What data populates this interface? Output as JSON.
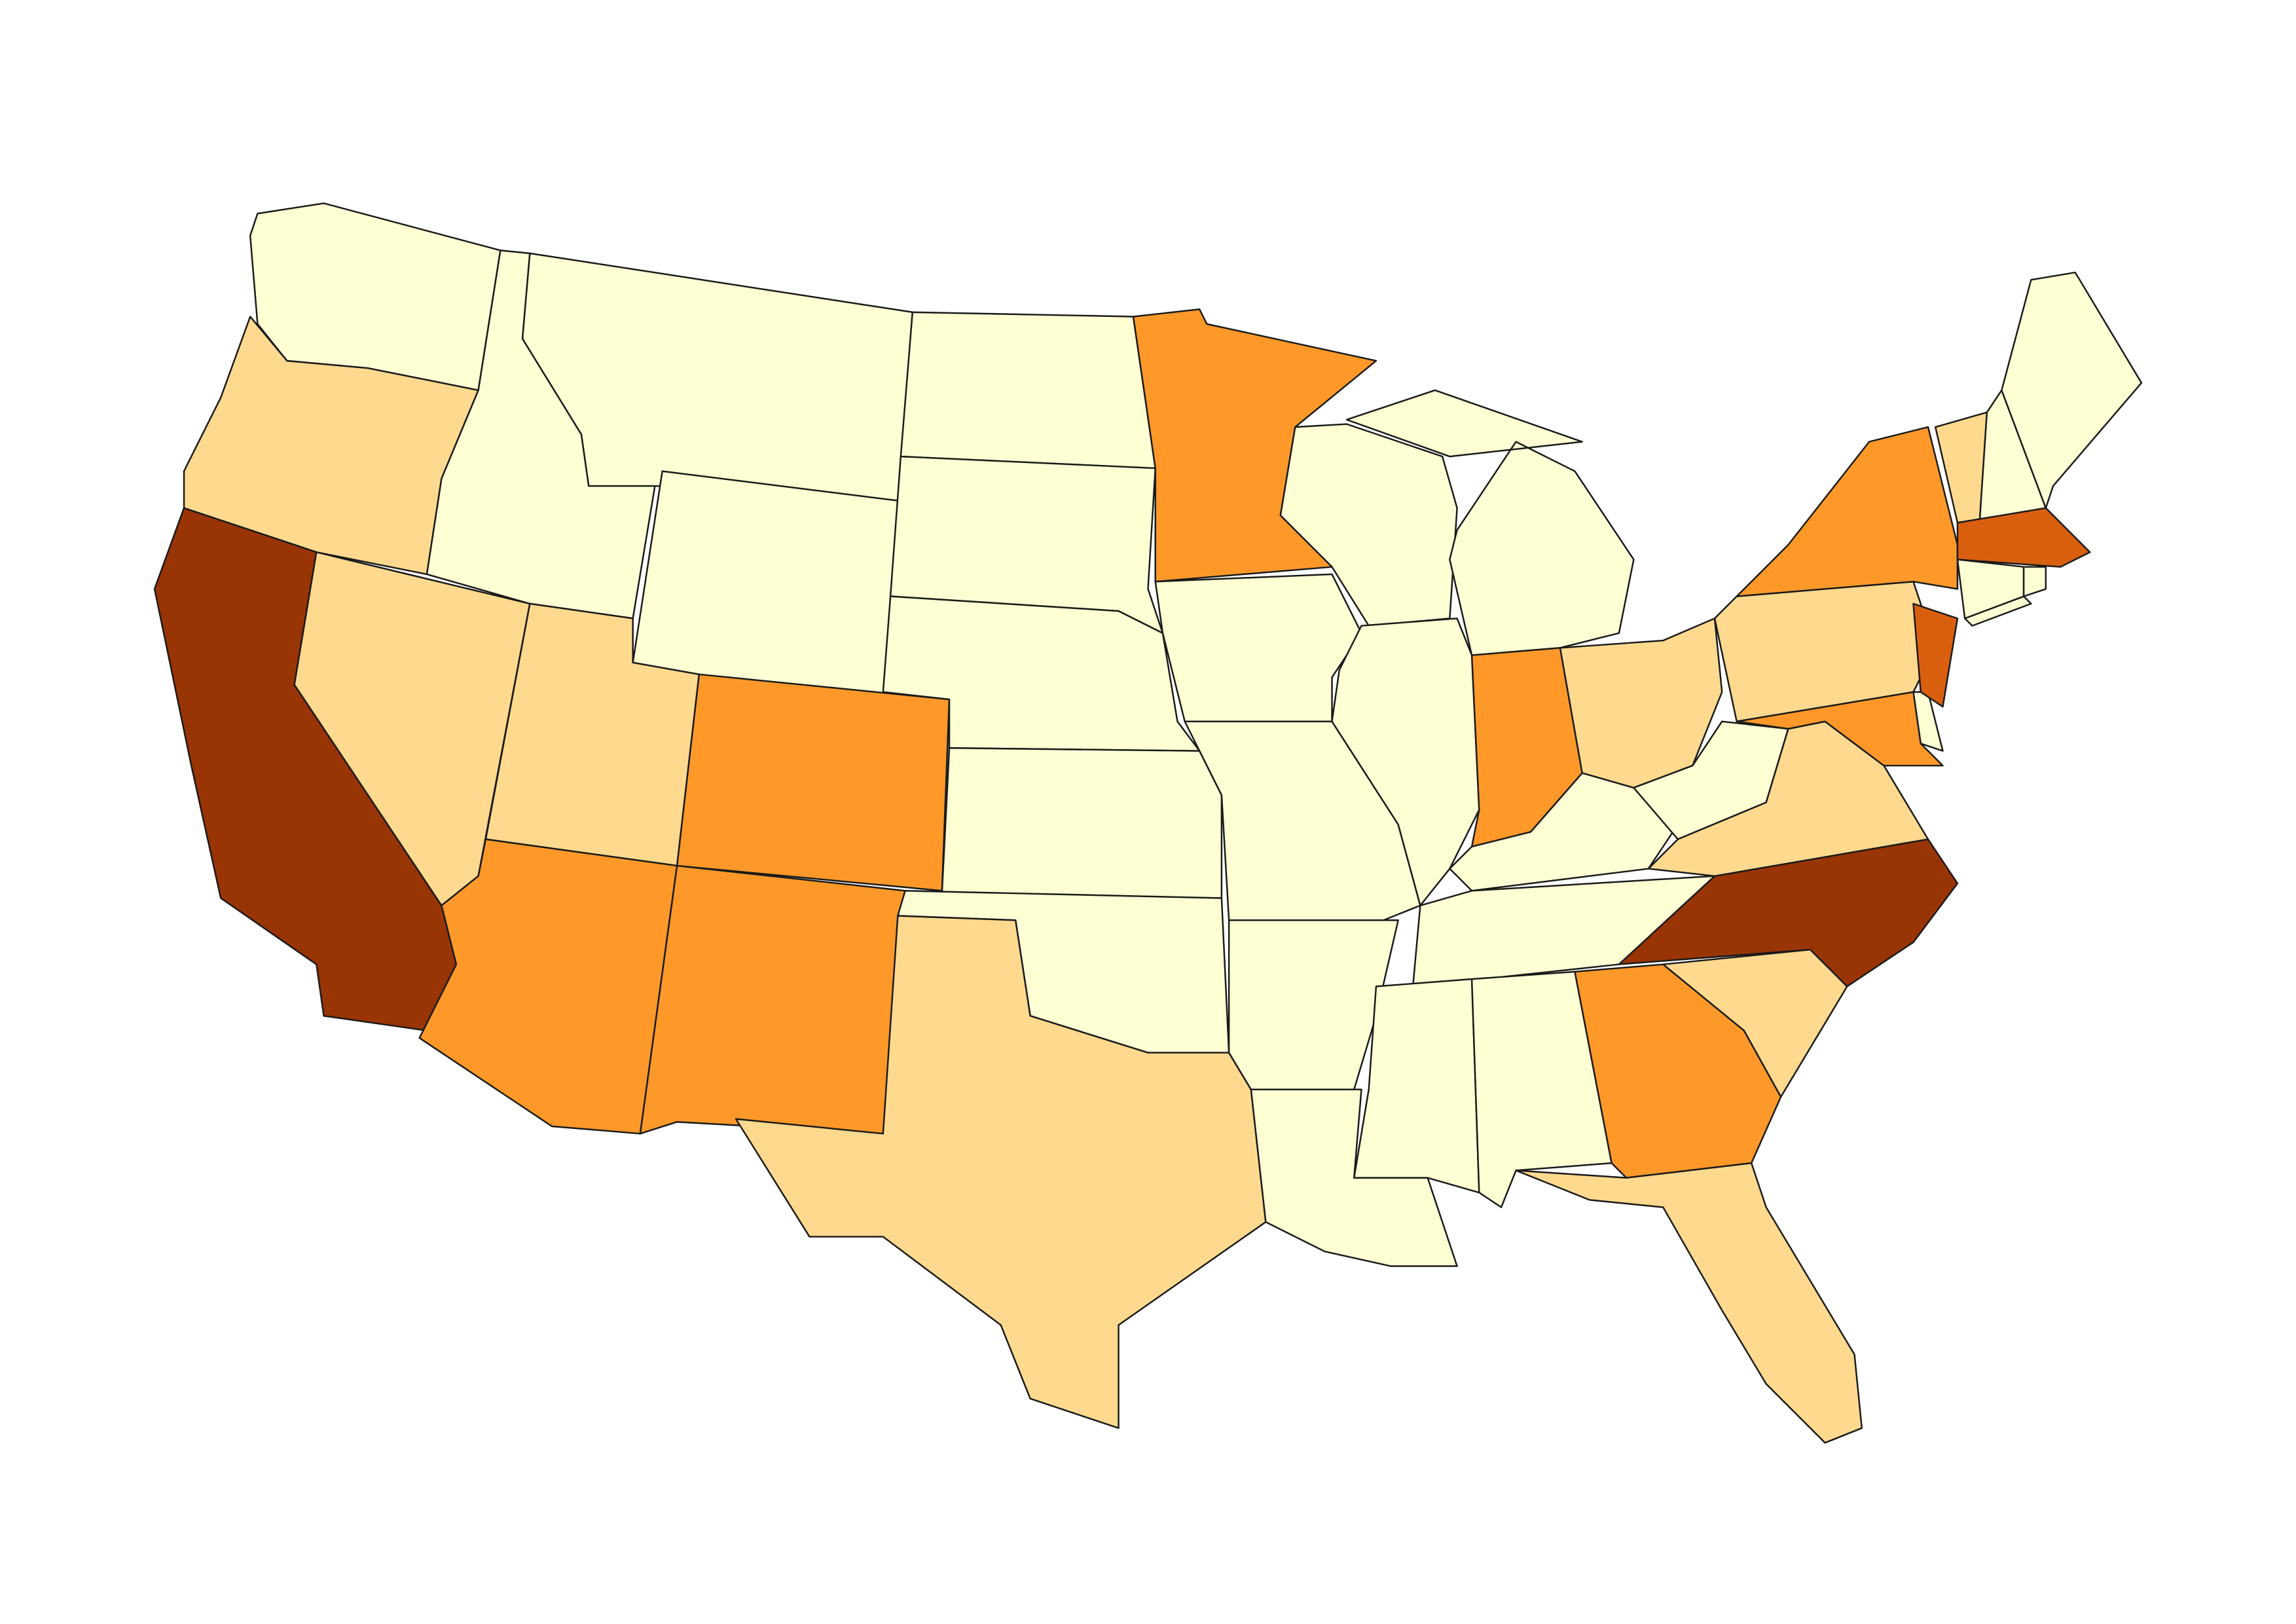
{
  "map": {
    "type": "choropleth",
    "regions": [
      {
        "color": "#ffffd4"
      },
      {
        "color": "#fed98e"
      },
      {
        "color": "#993404"
      },
      {
        "color": "#fed98e"
      },
      {
        "color": "#ffffd4"
      },
      {
        "color": "#ffffd4"
      },
      {
        "color": "#ffffd4"
      },
      {
        "color": "#fed98e"
      },
      {
        "color": "#fe9929"
      },
      {
        "color": "#fe9929"
      },
      {
        "color": "#fe9929"
      },
      {
        "color": "#ffffd4"
      },
      {
        "color": "#ffffd4"
      },
      {
        "color": "#ffffd4"
      },
      {
        "color": "#ffffd4"
      },
      {
        "color": "#ffffd4"
      },
      {
        "color": "#fed98e"
      },
      {
        "color": "#fe9929"
      },
      {
        "color": "#ffffd4"
      },
      {
        "color": "#ffffd4"
      },
      {
        "color": "#ffffd4"
      },
      {
        "color": "#ffffd4"
      },
      {
        "color": "#ffffd4"
      },
      {
        "color": "#ffffd4"
      },
      {
        "color": "#ffffd4"
      },
      {
        "color": "#ffffd4"
      },
      {
        "color": "#fe9929"
      },
      {
        "color": "#fed98e"
      },
      {
        "color": "#ffffd4"
      },
      {
        "color": "#ffffd4"
      },
      {
        "color": "#ffffd4"
      },
      {
        "color": "#ffffd4"
      },
      {
        "color": "#fe9929"
      },
      {
        "color": "#fed98e"
      },
      {
        "color": "#fed98e"
      },
      {
        "color": "#993404"
      },
      {
        "color": "#fed98e"
      },
      {
        "color": "#ffffd4"
      },
      {
        "color": "#fed98e"
      },
      {
        "color": "#fe9929"
      },
      {
        "color": "#d95f0e"
      },
      {
        "color": "#fe9929"
      },
      {
        "color": "#ffffd4"
      },
      {
        "color": "#fed98e"
      },
      {
        "color": "#ffffd4"
      },
      {
        "color": "#ffffd4"
      },
      {
        "color": "#d95f0e"
      },
      {
        "color": "#ffffd4"
      },
      {
        "color": "#ffffd4"
      }
    ]
  }
}
